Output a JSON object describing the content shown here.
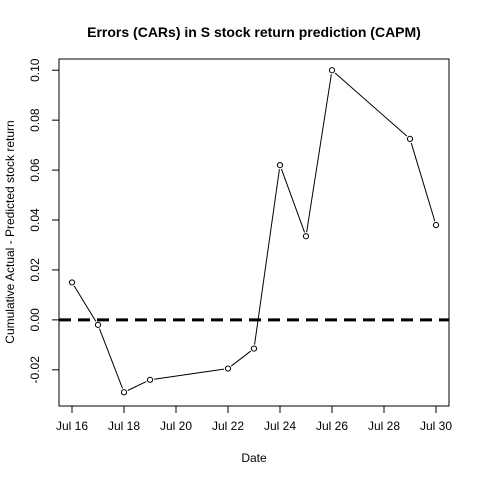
{
  "chart_data": {
    "type": "line",
    "title": "Errors (CARs) in S stock return prediction (CAPM)",
    "xlabel": "Date",
    "ylabel": "Cumulative Actual - Predicted stock return",
    "x": [
      16,
      17,
      18,
      19,
      22,
      23,
      24,
      25,
      26,
      29,
      30
    ],
    "values": [
      0.015,
      -0.002,
      -0.029,
      -0.024,
      -0.0195,
      -0.0115,
      0.062,
      0.0335,
      0.1,
      0.0725,
      0.038
    ],
    "xlim": [
      15.5,
      30.5
    ],
    "ylim": [
      -0.0345,
      0.1045
    ],
    "x_ticks": [
      16,
      18,
      20,
      22,
      24,
      26,
      28,
      30
    ],
    "x_tick_labels": [
      "Jul 16",
      "Jul 18",
      "Jul 20",
      "Jul 22",
      "Jul 24",
      "Jul 26",
      "Jul 28",
      "Jul 30"
    ],
    "y_ticks": [
      -0.02,
      0,
      0.02,
      0.04,
      0.06,
      0.08,
      0.1
    ],
    "y_tick_labels": [
      "-0.02",
      "0.00",
      "0.02",
      "0.04",
      "0.06",
      "0.08",
      "0.10"
    ],
    "reference_line": {
      "y": 0,
      "style": "dashed"
    },
    "line_color": "#000000",
    "grid": false,
    "legend": "none"
  }
}
